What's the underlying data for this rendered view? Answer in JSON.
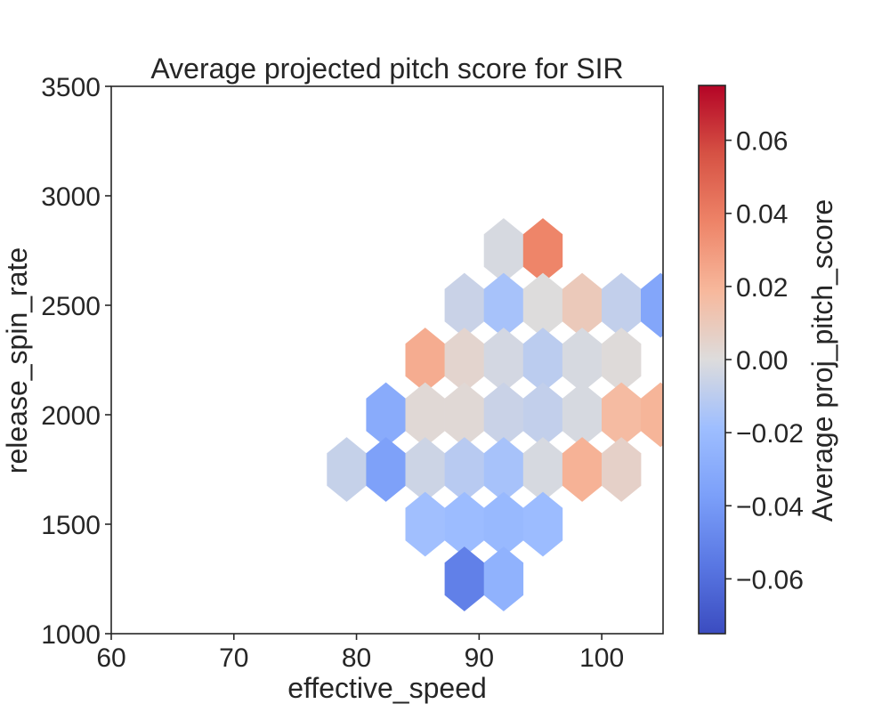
{
  "chart_data": {
    "type": "heatmap",
    "subtype": "hexbin",
    "title": "Average projected pitch score for SIR",
    "xlabel": "effective_speed",
    "ylabel": "release_spin_rate",
    "xlim": [
      60,
      105
    ],
    "ylim": [
      1000,
      3500
    ],
    "x_ticks": [
      "60",
      "70",
      "80",
      "90",
      "100"
    ],
    "y_ticks": [
      "1000",
      "1500",
      "2000",
      "2500",
      "3000",
      "3500"
    ],
    "grid": false,
    "colorbar": {
      "label": "Average proj_pitch_score",
      "range": [
        -0.075,
        0.075
      ],
      "ticks": [
        "−0.06",
        "−0.04",
        "−0.02",
        "0.00",
        "0.02",
        "0.04",
        "0.06"
      ],
      "tick_values": [
        -0.06,
        -0.04,
        -0.02,
        0.0,
        0.02,
        0.04,
        0.06
      ],
      "colormap": "coolwarm"
    },
    "hexagons": [
      {
        "x": 92.0,
        "y": 2750,
        "value": -0.002
      },
      {
        "x": 95.2,
        "y": 2750,
        "value": 0.037
      },
      {
        "x": 88.8,
        "y": 2500,
        "value": -0.006
      },
      {
        "x": 92.0,
        "y": 2500,
        "value": -0.016
      },
      {
        "x": 95.2,
        "y": 2500,
        "value": 0.0
      },
      {
        "x": 98.4,
        "y": 2500,
        "value": 0.01
      },
      {
        "x": 101.6,
        "y": 2500,
        "value": -0.008
      },
      {
        "x": 104.8,
        "y": 2500,
        "value": -0.033
      },
      {
        "x": 85.6,
        "y": 2250,
        "value": 0.023
      },
      {
        "x": 88.8,
        "y": 2250,
        "value": 0.004
      },
      {
        "x": 92.0,
        "y": 2250,
        "value": -0.003
      },
      {
        "x": 95.2,
        "y": 2250,
        "value": -0.01
      },
      {
        "x": 98.4,
        "y": 2250,
        "value": -0.002
      },
      {
        "x": 101.6,
        "y": 2250,
        "value": 0.001
      },
      {
        "x": 82.4,
        "y": 2000,
        "value": -0.03
      },
      {
        "x": 85.6,
        "y": 2000,
        "value": 0.002
      },
      {
        "x": 88.8,
        "y": 2000,
        "value": 0.002
      },
      {
        "x": 92.0,
        "y": 2000,
        "value": -0.006
      },
      {
        "x": 95.2,
        "y": 2000,
        "value": -0.008
      },
      {
        "x": 98.4,
        "y": 2000,
        "value": -0.002
      },
      {
        "x": 101.6,
        "y": 2000,
        "value": 0.017
      },
      {
        "x": 104.8,
        "y": 2000,
        "value": 0.02
      },
      {
        "x": 79.2,
        "y": 1750,
        "value": -0.007
      },
      {
        "x": 82.4,
        "y": 1750,
        "value": -0.036
      },
      {
        "x": 85.6,
        "y": 1750,
        "value": -0.005
      },
      {
        "x": 88.8,
        "y": 1750,
        "value": -0.011
      },
      {
        "x": 92.0,
        "y": 1750,
        "value": -0.016
      },
      {
        "x": 95.2,
        "y": 1750,
        "value": -0.002
      },
      {
        "x": 98.4,
        "y": 1750,
        "value": 0.021
      },
      {
        "x": 101.6,
        "y": 1750,
        "value": 0.006
      },
      {
        "x": 85.6,
        "y": 1500,
        "value": -0.018
      },
      {
        "x": 88.8,
        "y": 1500,
        "value": -0.02
      },
      {
        "x": 92.0,
        "y": 1500,
        "value": -0.022
      },
      {
        "x": 95.2,
        "y": 1500,
        "value": -0.02
      },
      {
        "x": 88.8,
        "y": 1250,
        "value": -0.052
      },
      {
        "x": 92.0,
        "y": 1250,
        "value": -0.026
      }
    ]
  }
}
